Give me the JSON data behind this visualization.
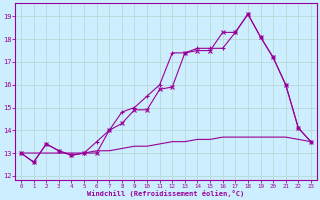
{
  "xlabel": "Windchill (Refroidissement éolien,°C)",
  "x": [
    0,
    1,
    2,
    3,
    4,
    5,
    6,
    7,
    8,
    9,
    10,
    11,
    12,
    13,
    14,
    15,
    16,
    17,
    18,
    19,
    20,
    21,
    22,
    23
  ],
  "line1": [
    13.0,
    12.6,
    13.4,
    13.1,
    12.9,
    13.0,
    13.0,
    14.0,
    14.3,
    14.9,
    14.9,
    15.8,
    15.9,
    17.4,
    17.5,
    17.5,
    18.3,
    18.3,
    19.1,
    18.1,
    17.2,
    16.0,
    14.1,
    13.5
  ],
  "line2": [
    13.0,
    12.6,
    13.4,
    13.1,
    12.9,
    13.0,
    13.5,
    14.0,
    14.8,
    15.0,
    15.5,
    16.0,
    17.4,
    17.4,
    17.6,
    17.6,
    17.6,
    18.3,
    19.1,
    18.1,
    17.2,
    16.0,
    14.1,
    13.5
  ],
  "line3": [
    13.0,
    13.0,
    13.0,
    13.0,
    13.0,
    13.0,
    13.1,
    13.1,
    13.2,
    13.3,
    13.3,
    13.4,
    13.5,
    13.5,
    13.6,
    13.6,
    13.7,
    13.7,
    13.7,
    13.7,
    13.7,
    13.7,
    13.6,
    13.5
  ],
  "line_color": "#990099",
  "bg_color": "#cceeff",
  "grid_color": "#aadddd",
  "xlim": [
    -0.5,
    23.5
  ],
  "ylim": [
    11.8,
    19.6
  ],
  "yticks": [
    12,
    13,
    14,
    15,
    16,
    17,
    18,
    19
  ],
  "xticks": [
    0,
    1,
    2,
    3,
    4,
    5,
    6,
    7,
    8,
    9,
    10,
    11,
    12,
    13,
    14,
    15,
    16,
    17,
    18,
    19,
    20,
    21,
    22,
    23
  ]
}
